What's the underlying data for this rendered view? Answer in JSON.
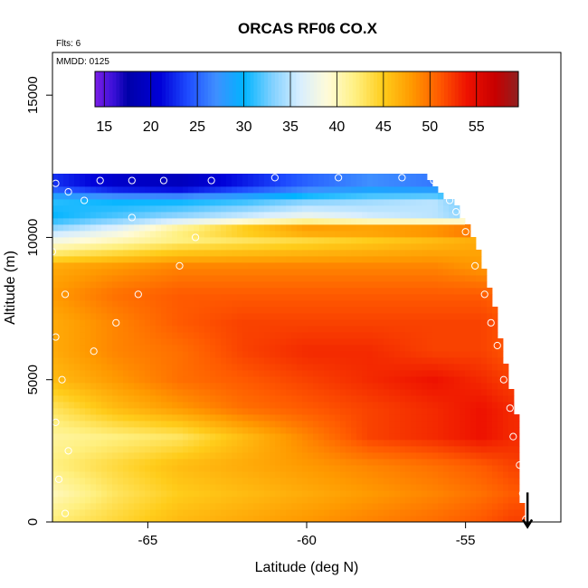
{
  "chart_data": {
    "type": "heatmap",
    "title": "ORCAS RF06 CO.X",
    "flights_note": "Flts: 6",
    "date_note": "MMDD: 0125",
    "xlabel": "Latitude (deg N)",
    "ylabel": "Altitude (m)",
    "xlim": [
      -68.0,
      -52.0
    ],
    "ylim": [
      0,
      16500
    ],
    "x_ticks": [
      -65,
      -60,
      -55
    ],
    "x_tick_labels": [
      "-65",
      "-60",
      "-55"
    ],
    "y_ticks": [
      0,
      5000,
      10000,
      15000
    ],
    "y_tick_labels": [
      "0",
      "5000",
      "10000",
      "15000"
    ],
    "colorbar": {
      "min": 14,
      "max": 59.5,
      "ticks": [
        15,
        20,
        25,
        30,
        35,
        40,
        45,
        50,
        55
      ],
      "tick_labels": [
        "15",
        "20",
        "25",
        "30",
        "35",
        "40",
        "45",
        "50",
        "55"
      ],
      "stops": [
        {
          "v": 14,
          "c": "#7a1ee6"
        },
        {
          "v": 16,
          "c": "#3a10d8"
        },
        {
          "v": 17.5,
          "c": "#0000a8"
        },
        {
          "v": 21,
          "c": "#0000d8"
        },
        {
          "v": 24,
          "c": "#1e4cff"
        },
        {
          "v": 27,
          "c": "#3f8fff"
        },
        {
          "v": 30,
          "c": "#00b4ff"
        },
        {
          "v": 33,
          "c": "#7fd0ff"
        },
        {
          "v": 36,
          "c": "#d8eeff"
        },
        {
          "v": 39,
          "c": "#fffbd8"
        },
        {
          "v": 42,
          "c": "#fff080"
        },
        {
          "v": 45,
          "c": "#ffcc1a"
        },
        {
          "v": 48,
          "c": "#ff9a00"
        },
        {
          "v": 51,
          "c": "#ff5a00"
        },
        {
          "v": 54,
          "c": "#ee1100"
        },
        {
          "v": 57,
          "c": "#c80000"
        },
        {
          "v": 59.5,
          "c": "#902020"
        }
      ]
    },
    "altitude_profile_m": [
      150,
      1000,
      2000,
      3000,
      4000,
      5000,
      6000,
      7000,
      8000,
      9000,
      9900,
      10300,
      10700,
      11300,
      11800
    ],
    "latitude_profile": [
      -68,
      -66,
      -64,
      -62,
      -60,
      -58,
      -56,
      -54.5,
      -53.5
    ],
    "values": [
      [
        42,
        44,
        46,
        47,
        48,
        49,
        50,
        51,
        52
      ],
      [
        40,
        43,
        45,
        46,
        47,
        48,
        49,
        50,
        51
      ],
      [
        42,
        44,
        46,
        47,
        48,
        49,
        50,
        51,
        52
      ],
      [
        41,
        42,
        43,
        46,
        49,
        52,
        53,
        54,
        53
      ],
      [
        43,
        46,
        48,
        50,
        51,
        52,
        53,
        54,
        53
      ],
      [
        46,
        48,
        50,
        51,
        52,
        53,
        54,
        53,
        52
      ],
      [
        47,
        49,
        50,
        52,
        53,
        53,
        52,
        52,
        51
      ],
      [
        47,
        49,
        51,
        52,
        52,
        52,
        52,
        52,
        51
      ],
      [
        48,
        50,
        51,
        51,
        51,
        51,
        51,
        51,
        50
      ],
      [
        47,
        48,
        49,
        49,
        49,
        49,
        49,
        48,
        47
      ],
      [
        38,
        40,
        42,
        43,
        44,
        45,
        46,
        47,
        46
      ],
      [
        34,
        37,
        42,
        46,
        49,
        49,
        50,
        52,
        55
      ],
      [
        30,
        32,
        34,
        36,
        38,
        36,
        35,
        33,
        32
      ],
      [
        31,
        30,
        30,
        31,
        33,
        34,
        35,
        31,
        29
      ],
      [
        23,
        20,
        19,
        22,
        25,
        27,
        26,
        24,
        22
      ]
    ],
    "top_boundary": [
      {
        "lat": -68,
        "alt": 12200
      },
      {
        "lat": -56.3,
        "alt": 12200
      },
      {
        "lat": -55.2,
        "alt": 11000
      },
      {
        "lat": -54.6,
        "alt": 9600
      },
      {
        "lat": -54.1,
        "alt": 7800
      },
      {
        "lat": -53.8,
        "alt": 5800
      },
      {
        "lat": -53.6,
        "alt": 4800
      },
      {
        "lat": -53.3,
        "alt": 3200
      },
      {
        "lat": -53.2,
        "alt": 0
      }
    ],
    "flight_track": [
      {
        "lat": -67.9,
        "alt": 11900
      },
      {
        "lat": -67.5,
        "alt": 11600
      },
      {
        "lat": -66.5,
        "alt": 12000
      },
      {
        "lat": -65.5,
        "alt": 12000
      },
      {
        "lat": -64.5,
        "alt": 12000
      },
      {
        "lat": -63.0,
        "alt": 12000
      },
      {
        "lat": -61.0,
        "alt": 12100
      },
      {
        "lat": -59.0,
        "alt": 12100
      },
      {
        "lat": -57.0,
        "alt": 12100
      },
      {
        "lat": -56.0,
        "alt": 12000
      },
      {
        "lat": -55.5,
        "alt": 11300
      },
      {
        "lat": -55.3,
        "alt": 10900
      },
      {
        "lat": -55.0,
        "alt": 10200
      },
      {
        "lat": -54.7,
        "alt": 9000
      },
      {
        "lat": -54.4,
        "alt": 8000
      },
      {
        "lat": -54.2,
        "alt": 7000
      },
      {
        "lat": -54.0,
        "alt": 6200
      },
      {
        "lat": -53.8,
        "alt": 5000
      },
      {
        "lat": -53.6,
        "alt": 4000
      },
      {
        "lat": -53.5,
        "alt": 3000
      },
      {
        "lat": -53.3,
        "alt": 2000
      },
      {
        "lat": -53.2,
        "alt": 1000
      },
      {
        "lat": -53.1,
        "alt": 100
      },
      {
        "lat": -68.0,
        "alt": 9500
      },
      {
        "lat": -67.6,
        "alt": 8000
      },
      {
        "lat": -67.9,
        "alt": 6500
      },
      {
        "lat": -67.7,
        "alt": 5000
      },
      {
        "lat": -67.9,
        "alt": 3500
      },
      {
        "lat": -67.5,
        "alt": 2500
      },
      {
        "lat": -67.8,
        "alt": 1500
      },
      {
        "lat": -67.6,
        "alt": 300
      },
      {
        "lat": -66.7,
        "alt": 6000
      },
      {
        "lat": -66.0,
        "alt": 7000
      },
      {
        "lat": -65.3,
        "alt": 8000
      },
      {
        "lat": -64.0,
        "alt": 9000
      },
      {
        "lat": -63.5,
        "alt": 10000
      },
      {
        "lat": -65.5,
        "alt": 10700
      },
      {
        "lat": -67.0,
        "alt": 11300
      }
    ],
    "end_marker": {
      "lat": -53.05,
      "alt": 400
    }
  }
}
